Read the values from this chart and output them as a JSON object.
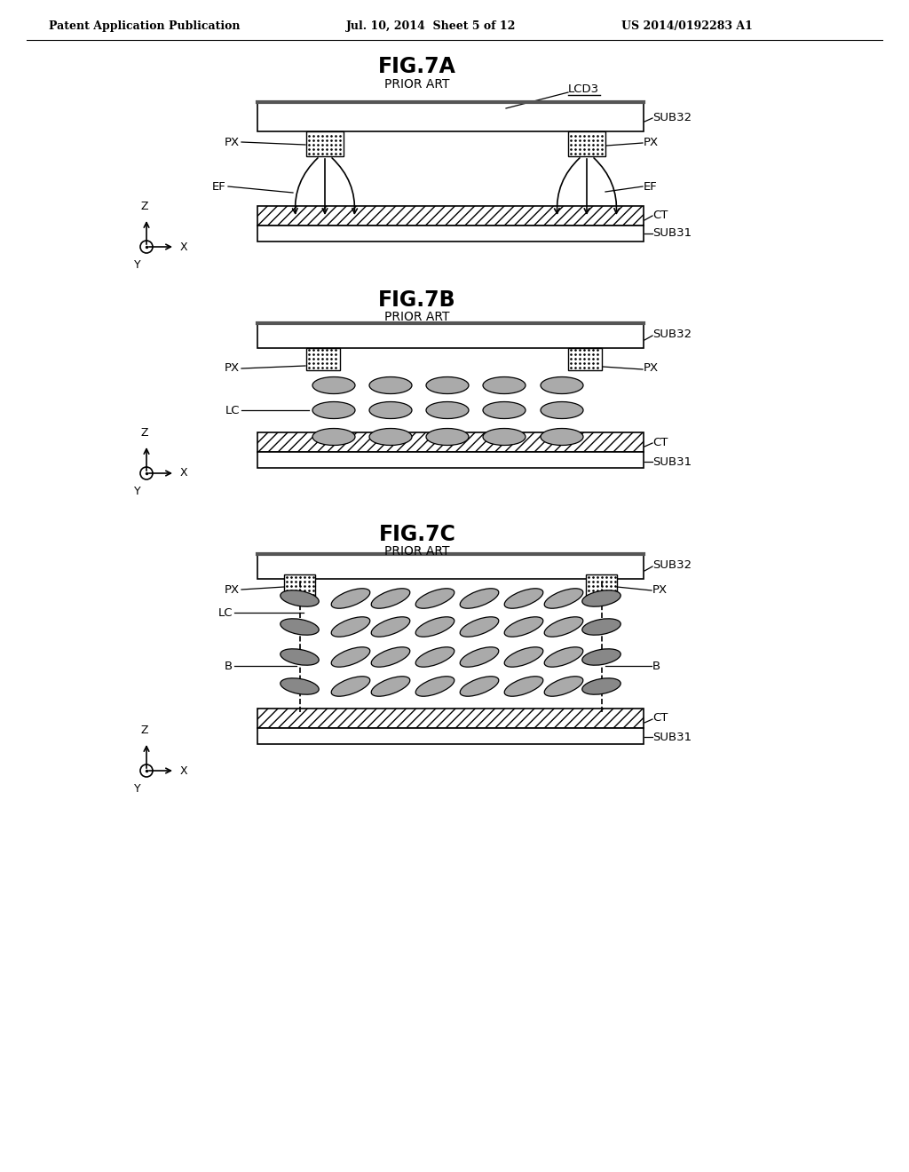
{
  "bg_color": "#ffffff",
  "header_left": "Patent Application Publication",
  "header_mid": "Jul. 10, 2014  Sheet 5 of 12",
  "header_right": "US 2014/0192283 A1"
}
